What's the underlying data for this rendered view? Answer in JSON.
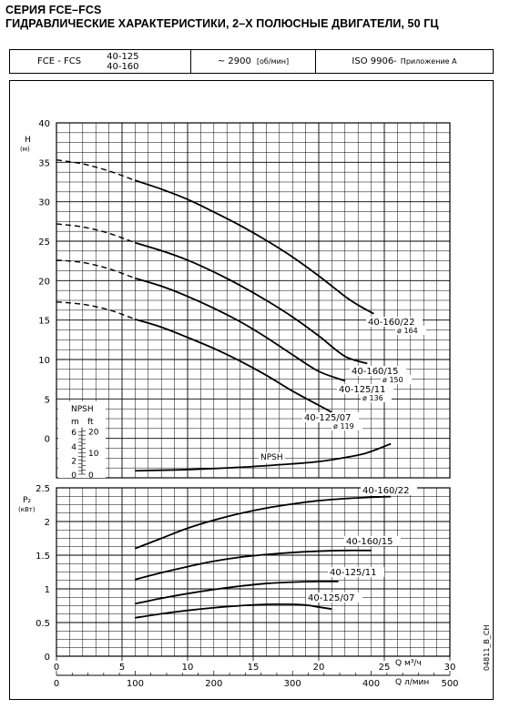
{
  "titles": {
    "line1": "СЕРИЯ FCE–FCS",
    "line2": "ГИДРАВЛИЧЕСКИЕ ХАРАКТЕРИСТИКИ, 2–Х ПОЛЮСНЫЕ ДВИГАТЕЛИ, 50 ГЦ"
  },
  "header": {
    "series": "FCE - FCS",
    "model_a": "40-125",
    "model_b": "40-160",
    "speed": "~ 2900",
    "speed_unit": "[об/мин]",
    "standard": "ISO 9906-",
    "standard_annex": "Приложение А"
  },
  "code": "04811_B_CH",
  "chart_data": [
    {
      "type": "line",
      "id": "head",
      "ylabel": "H",
      "yunit": "(м)",
      "ylim": [
        0,
        40
      ],
      "yticks": [
        0,
        5,
        10,
        15,
        20,
        25,
        30,
        35,
        40
      ],
      "xlim": [
        0,
        30
      ],
      "grid": true,
      "series": [
        {
          "name": "40-160/22",
          "label2": "ø 164",
          "x": [
            6,
            8,
            10,
            12,
            14,
            16,
            18,
            20,
            22,
            23,
            24.2
          ],
          "y": [
            32.7,
            31.6,
            30.3,
            28.7,
            27.0,
            25.1,
            23.0,
            20.6,
            18.0,
            16.9,
            15.8
          ],
          "dashed_x": [
            0,
            2,
            4,
            6
          ],
          "dashed_y": [
            35.3,
            34.8,
            33.9,
            32.7
          ]
        },
        {
          "name": "40-160/15",
          "label2": "ø 150",
          "x": [
            6,
            8,
            10,
            12,
            14,
            16,
            18,
            20,
            22,
            23.7
          ],
          "y": [
            24.8,
            23.8,
            22.6,
            21.1,
            19.4,
            17.5,
            15.4,
            13.0,
            10.4,
            9.5
          ],
          "dashed_x": [
            0,
            2,
            4,
            6
          ],
          "dashed_y": [
            27.2,
            26.8,
            26.0,
            24.8
          ]
        },
        {
          "name": "40-125/11",
          "label2": "ø 136",
          "x": [
            6,
            8,
            10,
            12,
            14,
            16,
            18,
            20,
            22
          ],
          "y": [
            20.3,
            19.3,
            18.0,
            16.5,
            14.8,
            12.8,
            10.6,
            8.5,
            7.3
          ],
          "dashed_x": [
            0,
            2,
            4,
            6
          ],
          "dashed_y": [
            22.6,
            22.3,
            21.5,
            20.3
          ]
        },
        {
          "name": "40-125/07",
          "label2": "ø 119",
          "x": [
            6,
            8,
            10,
            12,
            14,
            16,
            18,
            20,
            21
          ],
          "y": [
            15.1,
            14.1,
            12.8,
            11.4,
            9.8,
            8.0,
            6.0,
            4.2,
            3.3
          ],
          "dashed_x": [
            0,
            2,
            4,
            6
          ],
          "dashed_y": [
            17.3,
            17.0,
            16.3,
            15.1
          ]
        }
      ],
      "npsh": {
        "name": "NPSH",
        "axis_m": [
          0,
          2,
          4,
          6
        ],
        "axis_ft": [
          0,
          10,
          20
        ],
        "unit_m": "m",
        "unit_ft": "ft",
        "x": [
          6,
          10,
          14,
          18,
          20,
          22,
          23.5,
          24.5,
          25.5
        ],
        "y_m": [
          0.6,
          0.8,
          1.2,
          1.8,
          2.2,
          2.9,
          3.6,
          4.4,
          5.3
        ]
      }
    },
    {
      "type": "line",
      "id": "power",
      "ylabel": "P₂",
      "yunit": "(кВт)",
      "ylim": [
        0,
        2.5
      ],
      "yticks": [
        "0",
        "0.5",
        "1",
        "1.5",
        "2",
        "2.5"
      ],
      "xlim": [
        0,
        30
      ],
      "xticks": [
        0,
        5,
        10,
        15,
        20,
        25,
        30
      ],
      "xunit": "Q м³/ч",
      "x2ticks": [
        0,
        100,
        200,
        300,
        400,
        500
      ],
      "x2unit": "Q л/мин",
      "grid": true,
      "series": [
        {
          "name": "40-160/22",
          "x": [
            6,
            8,
            10,
            12,
            14,
            16,
            18,
            20,
            22,
            24,
            25.5
          ],
          "y": [
            1.6,
            1.75,
            1.9,
            2.02,
            2.12,
            2.2,
            2.26,
            2.31,
            2.34,
            2.36,
            2.37
          ]
        },
        {
          "name": "40-160/15",
          "x": [
            6,
            8,
            10,
            12,
            14,
            16,
            18,
            20,
            22,
            24
          ],
          "y": [
            1.14,
            1.24,
            1.33,
            1.41,
            1.47,
            1.51,
            1.54,
            1.56,
            1.57,
            1.57
          ]
        },
        {
          "name": "40-125/11",
          "x": [
            6,
            8,
            10,
            12,
            14,
            16,
            18,
            20,
            21.5
          ],
          "y": [
            0.78,
            0.86,
            0.93,
            0.99,
            1.04,
            1.08,
            1.1,
            1.11,
            1.11
          ]
        },
        {
          "name": "40-125/07",
          "x": [
            6,
            8,
            10,
            12,
            14,
            16,
            18,
            19,
            20,
            21
          ],
          "y": [
            0.57,
            0.63,
            0.68,
            0.72,
            0.75,
            0.77,
            0.77,
            0.76,
            0.73,
            0.7
          ]
        }
      ]
    }
  ]
}
